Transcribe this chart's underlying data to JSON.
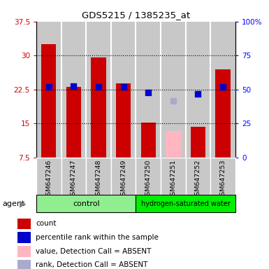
{
  "title": "GDS5215 / 1385235_at",
  "samples": [
    "GSM647246",
    "GSM647247",
    "GSM647248",
    "GSM647249",
    "GSM647250",
    "GSM647251",
    "GSM647252",
    "GSM647253"
  ],
  "red_values": [
    32.5,
    23.0,
    29.5,
    23.8,
    15.2,
    null,
    14.3,
    27.0
  ],
  "pink_values": [
    null,
    null,
    null,
    null,
    null,
    13.3,
    null,
    null
  ],
  "blue_squares": [
    23.1,
    23.3,
    23.1,
    23.1,
    21.8,
    null,
    21.5,
    23.1
  ],
  "lavender_squares": [
    null,
    null,
    null,
    null,
    null,
    20.0,
    null,
    null
  ],
  "ylim_left": [
    7.5,
    37.5
  ],
  "ylim_right": [
    0,
    100
  ],
  "yticks_left": [
    7.5,
    15.0,
    22.5,
    30.0,
    37.5
  ],
  "yticks_right": [
    0,
    25,
    50,
    75,
    100
  ],
  "ytick_labels_left": [
    "7.5",
    "15",
    "22.5",
    "30",
    "37.5"
  ],
  "ytick_labels_right": [
    "0",
    "25",
    "50",
    "75",
    "100%"
  ],
  "bar_color_red": "#CC0000",
  "bar_color_pink": "#FFB6C1",
  "square_color_blue": "#0000CC",
  "square_color_lavender": "#AAAACC",
  "col_bg_color": "#C8C8C8",
  "bar_width": 0.6,
  "baseline": 7.5,
  "group_boundary": 4,
  "control_color": "#90EE90",
  "hydro_color": "#00DD00",
  "legend_items": [
    {
      "color": "#CC0000",
      "label": "count"
    },
    {
      "color": "#0000CC",
      "label": "percentile rank within the sample"
    },
    {
      "color": "#FFB6C1",
      "label": "value, Detection Call = ABSENT"
    },
    {
      "color": "#AAAACC",
      "label": "rank, Detection Call = ABSENT"
    }
  ]
}
